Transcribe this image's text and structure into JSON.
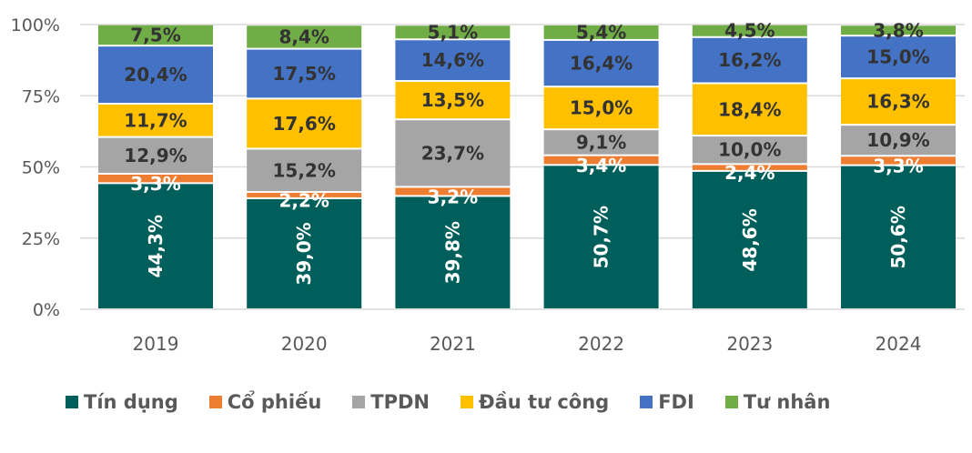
{
  "chart_data": {
    "type": "bar",
    "stacked": true,
    "title": "",
    "xlabel": "",
    "ylabel": "",
    "ylim": [
      0,
      100
    ],
    "yticks": [
      "0%",
      "25%",
      "50%",
      "75%",
      "100%"
    ],
    "grid": true,
    "legend_position": "bottom",
    "categories": [
      "2019",
      "2020",
      "2021",
      "2022",
      "2023",
      "2024"
    ],
    "series": [
      {
        "name": "Tín dụng",
        "color": "#005f5a",
        "values": [
          44.3,
          39.0,
          39.8,
          50.7,
          48.6,
          50.6
        ],
        "labels": [
          "44,3%",
          "39,0%",
          "39,8%",
          "50,7%",
          "48,6%",
          "50,6%"
        ]
      },
      {
        "name": "Cổ phiếu",
        "color": "#ed7d31",
        "values": [
          3.3,
          2.2,
          3.2,
          3.4,
          2.4,
          3.3
        ],
        "labels": [
          "3,3%",
          "2,2%",
          "3,2%",
          "3,4%",
          "2,4%",
          "3,3%"
        ]
      },
      {
        "name": "TPDN",
        "color": "#a5a5a5",
        "values": [
          12.9,
          15.2,
          23.7,
          9.1,
          10.0,
          10.9
        ],
        "labels": [
          "12,9%",
          "15,2%",
          "23,7%",
          "9,1%",
          "10,0%",
          "10,9%"
        ]
      },
      {
        "name": "Đầu tư công",
        "color": "#ffc000",
        "values": [
          11.7,
          17.6,
          13.5,
          15.0,
          18.4,
          16.3
        ],
        "labels": [
          "11,7%",
          "17,6%",
          "13,5%",
          "15,0%",
          "18,4%",
          "16,3%"
        ]
      },
      {
        "name": "FDI",
        "color": "#4472c4",
        "values": [
          20.4,
          17.5,
          14.6,
          16.4,
          16.2,
          15.0
        ],
        "labels": [
          "20,4%",
          "17,5%",
          "14,6%",
          "16,4%",
          "16,2%",
          "15,0%"
        ]
      },
      {
        "name": "Tư nhân",
        "color": "#70ad47",
        "values": [
          7.5,
          8.4,
          5.1,
          5.4,
          4.5,
          3.8
        ],
        "labels": [
          "7,5%",
          "8,4%",
          "5,1%",
          "5,4%",
          "4,5%",
          "3,8%"
        ]
      }
    ]
  }
}
